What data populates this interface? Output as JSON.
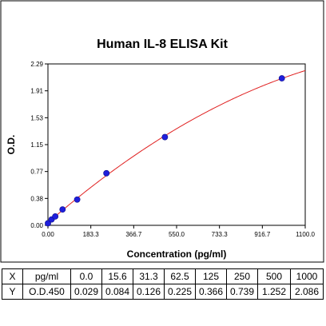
{
  "chart_data": {
    "type": "scatter",
    "title": "Human IL-8 ELISA Kit",
    "xlabel": "Concentration (pg/ml)",
    "ylabel": "O.D.",
    "xlim": [
      0,
      1100
    ],
    "ylim": [
      0,
      2.29
    ],
    "x_ticks": [
      "0.00",
      "183.3",
      "366.7",
      "550.0",
      "733.3",
      "916.7",
      "1100.0"
    ],
    "y_ticks": [
      "0.00",
      "0.38",
      "0.77",
      "1.15",
      "1.53",
      "1.91",
      "2.29"
    ],
    "grid": false,
    "series": [
      {
        "x": [
          0.0,
          15.6,
          31.3,
          62.5,
          125,
          250,
          500,
          1000
        ],
        "y": [
          0.029,
          0.084,
          0.126,
          0.225,
          0.366,
          0.739,
          1.252,
          2.086
        ],
        "marker_color": "#1f1fdc",
        "curve_color": "#e02020"
      }
    ]
  },
  "table": {
    "rows": [
      {
        "label": "X",
        "unit": "pg/ml",
        "values": [
          "0.0",
          "15.6",
          "31.3",
          "62.5",
          "125",
          "250",
          "500",
          "1000"
        ]
      },
      {
        "label": "Y",
        "unit": "O.D.450",
        "values": [
          "0.029",
          "0.084",
          "0.126",
          "0.225",
          "0.366",
          "0.739",
          "1.252",
          "2.086"
        ]
      }
    ]
  }
}
